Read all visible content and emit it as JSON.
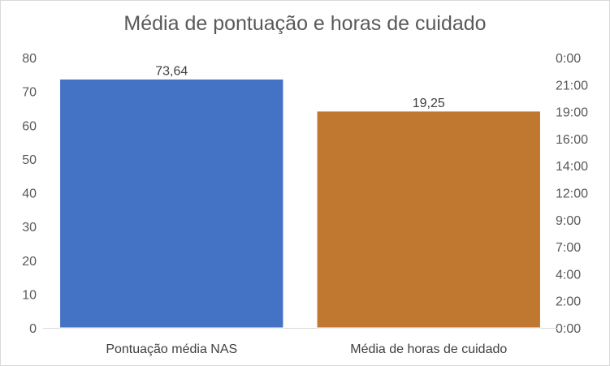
{
  "chart_data": {
    "type": "bar",
    "title": "Média de pontuação e horas de cuidado",
    "categories": [
      "Pontuação média NAS",
      "Média de horas de cuidado"
    ],
    "series": [
      {
        "axis": "left",
        "values": [
          73.64,
          null
        ],
        "data_labels": [
          "73,64",
          ""
        ],
        "color": "#4472C4"
      },
      {
        "axis": "right",
        "values": [
          null,
          19.25
        ],
        "value_hours": [
          null,
          19.25
        ],
        "data_labels": [
          "",
          "19,25"
        ],
        "color": "#C0772F"
      }
    ],
    "left_axis": {
      "ylim": [
        0,
        80
      ],
      "tick_labels": [
        "0",
        "10",
        "20",
        "30",
        "40",
        "50",
        "60",
        "70",
        "80"
      ]
    },
    "right_axis": {
      "tick_labels": [
        "0:00",
        "2:00",
        "4:00",
        "7:00",
        "9:00",
        "12:00",
        "14:00",
        "16:00",
        "19:00",
        "21:00",
        "0:00"
      ],
      "ylim_hours": [
        0,
        24
      ]
    },
    "grid": false,
    "legend": "none"
  }
}
